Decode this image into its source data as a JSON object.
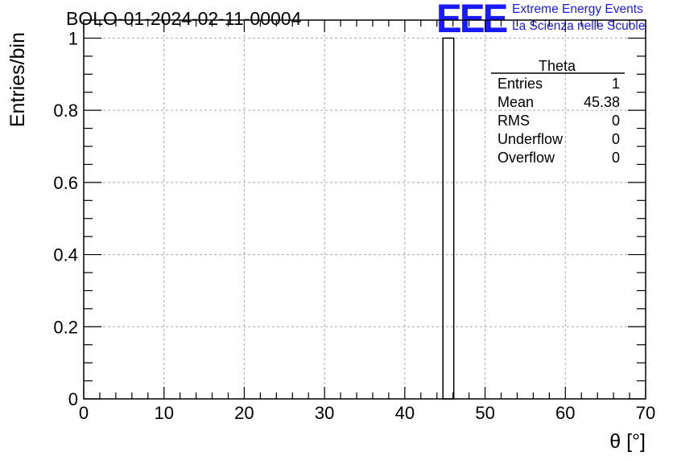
{
  "header": {
    "title": "BOLO-01-2024-02-11-00004",
    "logo_letters": "EEE",
    "logo_line1": "Extreme Energy Events",
    "logo_line2": "La Scienza nelle Scuole",
    "logo_color": "#1a1aff"
  },
  "chart_data": {
    "type": "bar",
    "xlabel": "θ [°]",
    "ylabel": "Entries/bin",
    "xlim": [
      0,
      70
    ],
    "ylim": [
      0,
      1.05
    ],
    "grid": true,
    "x_ticks": [
      0,
      10,
      20,
      30,
      40,
      50,
      60,
      70
    ],
    "x_tick_labels": [
      "0",
      "10",
      "20",
      "30",
      "40",
      "50",
      "60",
      "70"
    ],
    "y_ticks": [
      0,
      0.2,
      0.4,
      0.6,
      0.8,
      1
    ],
    "y_tick_labels": [
      "0",
      "0.2",
      "0.4",
      "0.6",
      "0.8",
      "1"
    ],
    "bins": [
      {
        "x_low": 44.75,
        "x_high": 46.1,
        "value": 1
      }
    ],
    "stats_box": {
      "title": "Theta",
      "placement": "top-right",
      "rows": [
        {
          "label": "Entries",
          "value": "1"
        },
        {
          "label": "Mean",
          "value": "45.38"
        },
        {
          "label": "RMS",
          "value": "0"
        },
        {
          "label": "Underflow",
          "value": "0"
        },
        {
          "label": "Overflow",
          "value": "0"
        }
      ]
    }
  }
}
